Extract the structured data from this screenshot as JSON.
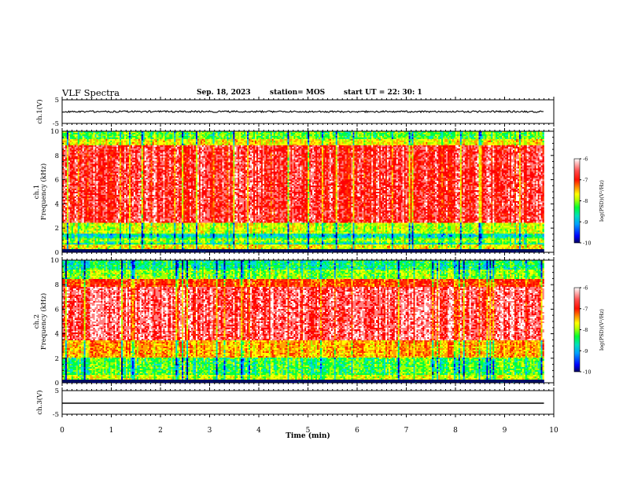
{
  "header": {
    "title": "VLF Spectra",
    "date": "Sep. 18, 2023",
    "station": "station= MOS",
    "start": "start  UT =   22: 30: 1"
  },
  "chart_data": [
    {
      "type": "line",
      "panel": "ch.1 waveform",
      "ylabel": "ch.1(V)",
      "yticks": [
        "5",
        "-5"
      ],
      "ylim": [
        -5,
        5
      ],
      "xlim": [
        0,
        10
      ],
      "series": [
        {
          "values": "nearly constant trace near the top of the panel, ~0.9 of the axis height, with small jitter, ending at ~9.8 min"
        }
      ]
    },
    {
      "type": "heatmap",
      "panel": "ch.1 spectrogram",
      "ylabel": "ch.1\nFrequency (kHz)",
      "ylabel_lines": [
        "ch.1",
        "Frequency (kHz)"
      ],
      "yticks": [
        "0",
        "2",
        "4",
        "6",
        "8",
        "10"
      ],
      "ylim": [
        0,
        10
      ],
      "xlim": [
        0,
        10
      ],
      "data_end_min": 9.8,
      "colorbar": {
        "label": "log(PSD)(V²/Hz)",
        "ticks": [
          "-6",
          "-7",
          "-8",
          "-9",
          "-10"
        ],
        "range": [
          -10,
          -6
        ]
      },
      "description_levels": "mostly -6 to -7 (white/red) between 0.5 and 9 kHz with vertical striations; -8 to -9 (green/blue) bands near 1-2.5 kHz and above 9 kHz"
    },
    {
      "type": "heatmap",
      "panel": "ch.2 spectrogram",
      "ylabel": "ch.2\nFrequency (kHz)",
      "ylabel_lines": [
        "ch.2",
        "Frequency (kHz)"
      ],
      "yticks": [
        "0",
        "2",
        "4",
        "6",
        "8",
        "10"
      ],
      "ylim": [
        0,
        10
      ],
      "xlim": [
        0,
        10
      ],
      "data_end_min": 9.8,
      "colorbar": {
        "label": "log(PSD)(V²/Hz)",
        "ticks": [
          "-6",
          "-7",
          "-8",
          "-9",
          "-10"
        ],
        "range": [
          -10,
          -6
        ]
      }
    },
    {
      "type": "line",
      "panel": "ch.3 waveform",
      "ylabel": "ch.3(V)",
      "yticks": [
        "5",
        "-5"
      ],
      "ylim": [
        -5,
        5
      ],
      "xlim": [
        0,
        10
      ],
      "series": [
        {
          "values": "flat trace slightly below the middle of the panel"
        }
      ]
    }
  ],
  "xaxis": {
    "label": "Time (min)",
    "ticks": [
      "0",
      "1",
      "2",
      "3",
      "4",
      "5",
      "6",
      "7",
      "8",
      "9",
      "10"
    ]
  },
  "colors": {
    "scale": [
      "#000080",
      "#0000ff",
      "#00a0ff",
      "#00e0d0",
      "#00ff40",
      "#a0ff00",
      "#ffff00",
      "#ffa000",
      "#ff3000",
      "#ff0000",
      "#ff8080",
      "#ffffff"
    ]
  }
}
